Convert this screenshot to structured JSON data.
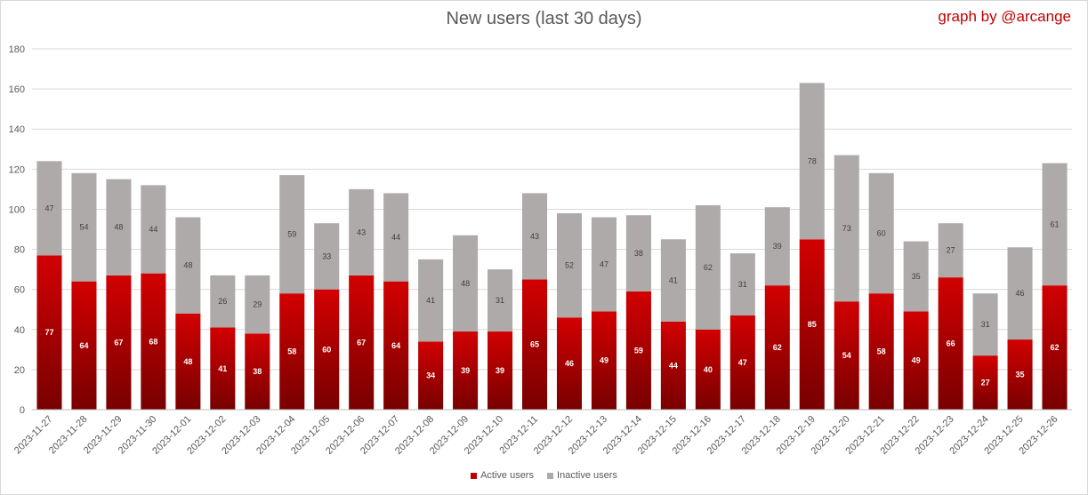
{
  "chart_data": {
    "type": "bar",
    "stacked": true,
    "title": "New users (last 30 days)",
    "credit": "graph by @arcange",
    "categories": [
      "2023-11-27",
      "2023-11-28",
      "2023-11-29",
      "2023-11-30",
      "2023-12-01",
      "2023-12-02",
      "2023-12-03",
      "2023-12-04",
      "2023-12-05",
      "2023-12-06",
      "2023-12-07",
      "2023-12-08",
      "2023-12-09",
      "2023-12-10",
      "2023-12-11",
      "2023-12-12",
      "2023-12-13",
      "2023-12-14",
      "2023-12-15",
      "2023-12-16",
      "2023-12-17",
      "2023-12-18",
      "2023-12-19",
      "2023-12-20",
      "2023-12-21",
      "2023-12-22",
      "2023-12-23",
      "2023-12-24",
      "2023-12-25",
      "2023-12-26"
    ],
    "series": [
      {
        "name": "Active users",
        "color": "#c00000",
        "values": [
          77,
          64,
          67,
          68,
          48,
          41,
          38,
          58,
          60,
          67,
          64,
          34,
          39,
          39,
          65,
          46,
          49,
          59,
          44,
          40,
          47,
          62,
          85,
          54,
          58,
          49,
          66,
          27,
          35,
          62
        ]
      },
      {
        "name": "Inactive users",
        "color": "#aeaaaa",
        "values": [
          47,
          54,
          48,
          44,
          48,
          26,
          29,
          59,
          33,
          43,
          44,
          41,
          48,
          31,
          43,
          52,
          47,
          38,
          41,
          62,
          31,
          39,
          78,
          73,
          60,
          35,
          27,
          31,
          46,
          61
        ]
      }
    ],
    "yticks": [
      "0",
      "20",
      "40",
      "60",
      "80",
      "100",
      "120",
      "140",
      "160",
      "180"
    ],
    "ylim": [
      0,
      180
    ],
    "grid": true,
    "legend_position": "bottom"
  }
}
